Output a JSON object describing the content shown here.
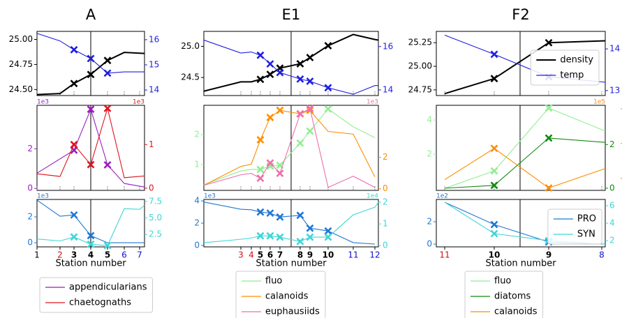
{
  "chart_data": [
    {
      "type": "line",
      "title": "A",
      "xlabel": "Station number",
      "xlim": [
        0,
        154
      ],
      "vline": 77,
      "xticks": [
        {
          "value": 0,
          "label": "1"
        },
        {
          "value": 33,
          "label": "2"
        },
        {
          "value": 53,
          "label": "3"
        },
        {
          "value": 77,
          "label": "4"
        },
        {
          "value": 101,
          "label": "5"
        },
        {
          "value": 125,
          "label": "6"
        },
        {
          "value": 147,
          "label": "7"
        }
      ],
      "xtick_styles": [
        "normal",
        "red",
        "bold",
        "bold",
        "bold",
        "blue",
        "blue"
      ],
      "panels": [
        {
          "ylim": [
            24.44,
            25.08
          ],
          "yticks": [
            {
              "value": 24.5,
              "label": "24.50"
            },
            24.75,
            {
              "value": 25,
              "label": "25.00"
            }
          ],
          "y2lim": [
            13.78,
            16.33
          ],
          "y2ticks": [
            14,
            15,
            16
          ],
          "series": [
            {
              "color": "#000000",
              "width": 2,
              "x": [
                0,
                33,
                53,
                77,
                101,
                125,
                154
              ],
              "values": [
                24.45,
                24.46,
                24.56,
                24.65,
                24.79,
                24.87,
                24.86
              ],
              "marker_x": [
                53,
                77,
                101
              ]
            },
            {
              "color": "#1f1fe0",
              "axis": "y2",
              "x": [
                0,
                33,
                53,
                77,
                101,
                125,
                154
              ],
              "values": [
                16.25,
                15.95,
                15.6,
                15.25,
                14.67,
                14.72,
                14.72
              ],
              "marker_x": [
                53,
                77,
                101
              ]
            }
          ]
        },
        {
          "ylim": [
            -0.1,
            4.2
          ],
          "yticks": [
            0,
            2
          ],
          "y2lim": [
            -0.05,
            1.9
          ],
          "y2ticks": [
            0,
            1
          ],
          "scale_left": "1e3",
          "scale_right": "1e3",
          "legend": "below",
          "series": [
            {
              "name": "appendicularians",
              "color": "#9b1fc0",
              "x": [
                0,
                53,
                77,
                101,
                125,
                154
              ],
              "values": [
                0.77,
                1.93,
                4.0,
                1.19,
                0.25,
                0.07
              ],
              "marker_x": [
                53,
                77,
                101
              ]
            },
            {
              "name": "chaetognaths",
              "color": "#e0141e",
              "axis": "y2",
              "x": [
                0,
                33,
                53,
                77,
                101,
                125,
                154
              ],
              "values": [
                0.33,
                0.27,
                1.0,
                0.54,
                1.83,
                0.24,
                0.28
              ],
              "marker_x": [
                53,
                77,
                101
              ]
            }
          ]
        },
        {
          "ylim": [
            -0.32,
            3.35
          ],
          "yticks": [
            0,
            2
          ],
          "y2lim": [
            0.6,
            7.8
          ],
          "y2ticks": [
            2.5,
            {
              "value": 5,
              "label": "5.0"
            },
            7.5
          ],
          "scale_left": "1e3",
          "series": [
            {
              "color": "#1f77d4",
              "x": [
                0,
                33,
                53,
                77,
                101,
                125,
                154
              ],
              "values": [
                3.3,
                2.05,
                2.15,
                0.55,
                0.0,
                0.0,
                0.0
              ],
              "marker_x": [
                53,
                77
              ]
            },
            {
              "color": "#3fd6d6",
              "axis": "y2",
              "x": [
                0,
                33,
                53,
                77,
                101,
                125,
                147,
                154
              ],
              "values": [
                1.8,
                1.5,
                2.1,
                1.0,
                0.8,
                6.4,
                6.3,
                6.9
              ],
              "marker_x": [
                53,
                77,
                101
              ]
            }
          ]
        }
      ]
    },
    {
      "type": "line",
      "title": "E1",
      "xlabel": "Station number",
      "xlim": [
        0,
        250
      ],
      "vline": 125,
      "xticks": [
        {
          "value": 53,
          "label": "3"
        },
        {
          "value": 68,
          "label": "4"
        },
        {
          "value": 81,
          "label": "5"
        },
        {
          "value": 95,
          "label": "6"
        },
        {
          "value": 109,
          "label": "7"
        },
        {
          "value": 138,
          "label": "8"
        },
        {
          "value": 152,
          "label": "9"
        },
        {
          "value": 178,
          "label": "10"
        },
        {
          "value": 214,
          "label": "11"
        },
        {
          "value": 245,
          "label": "12"
        }
      ],
      "xtick_styles": [
        "red",
        "red",
        "bold",
        "bold",
        "bold",
        "bold",
        "bold",
        "bold",
        "blue",
        "blue"
      ],
      "panels": [
        {
          "ylim": [
            24.21,
            25.24
          ],
          "yticks": [
            24.5,
            {
              "value": 25,
              "label": "25.0"
            }
          ],
          "y2lim": [
            13.74,
            16.7
          ],
          "y2ticks": [
            14,
            16
          ],
          "series": [
            {
              "color": "#000000",
              "width": 2,
              "x": [
                0,
                53,
                68,
                81,
                95,
                109,
                138,
                152,
                178,
                214,
                245,
                250
              ],
              "values": [
                24.28,
                24.43,
                24.43,
                24.47,
                24.55,
                24.65,
                24.72,
                24.82,
                25.01,
                25.19,
                25.11,
                25.1
              ],
              "marker_x": [
                81,
                95,
                109,
                138,
                152,
                178
              ]
            },
            {
              "color": "#1f1fe0",
              "axis": "y2",
              "x": [
                0,
                53,
                68,
                81,
                95,
                109,
                138,
                152,
                178,
                214,
                245,
                250
              ],
              "values": [
                16.3,
                15.7,
                15.75,
                15.6,
                15.2,
                14.8,
                14.5,
                14.4,
                14.1,
                13.8,
                14.2,
                14.2
              ],
              "marker_x": [
                81,
                95,
                109,
                138,
                152,
                178
              ]
            }
          ]
        },
        {
          "ylim": [
            0.14,
            2.98
          ],
          "yticks": [
            1,
            2
          ],
          "y2lim": [
            -0.1,
            5.3
          ],
          "y2ticks": [
            0,
            2
          ],
          "scale_right": "1e3",
          "legend": "below",
          "series": [
            {
              "name": "fluo",
              "color": "#90ee90",
              "x": [
                0,
                53,
                68,
                81,
                95,
                109,
                138,
                152,
                178,
                214,
                245
              ],
              "values": [
                0.33,
                0.79,
                0.84,
                0.84,
                0.95,
                0.98,
                1.72,
                2.12,
                2.86,
                2.26,
                1.9
              ],
              "marker_x": [
                81,
                95,
                109,
                138,
                152,
                178
              ]
            },
            {
              "name": "calanoids",
              "color": "#ff8c00",
              "axis": "y2",
              "x": [
                0,
                53,
                68,
                81,
                95,
                109,
                138,
                152,
                178,
                214,
                245
              ],
              "values": [
                0.22,
                1.42,
                1.56,
                3.11,
                4.53,
                4.98,
                4.76,
                4.98,
                3.64,
                3.47,
                0.76
              ],
              "marker_x": [
                81,
                95,
                109,
                138,
                152
              ]
            },
            {
              "name": "euphausiids",
              "color": "#f06eaa",
              "axis": "y2",
              "x": [
                0,
                53,
                68,
                81,
                95,
                109,
                138,
                152,
                178,
                214,
                245
              ],
              "values": [
                0.22,
                0.89,
                0.98,
                0.67,
                1.64,
                0.98,
                4.76,
                5.1,
                0.09,
                0.8,
                0.09
              ],
              "marker_x": [
                81,
                95,
                109,
                138,
                152
              ]
            }
          ]
        },
        {
          "ylim": [
            -0.13,
            4.13
          ],
          "yticks": [
            0,
            2,
            4
          ],
          "y2lim": [
            -0.06,
            2.13
          ],
          "y2ticks": [
            0,
            1,
            2
          ],
          "scale_left": "1e3",
          "scale_right": "1e4",
          "series": [
            {
              "color": "#1f77d4",
              "x": [
                0,
                53,
                68,
                81,
                95,
                109,
                138,
                152,
                178,
                214,
                245
              ],
              "values": [
                3.9,
                3.25,
                3.2,
                3.0,
                2.9,
                2.55,
                2.7,
                1.55,
                1.3,
                0.25,
                0.12
              ],
              "marker_x": [
                81,
                95,
                109,
                138,
                152,
                178
              ]
            },
            {
              "color": "#3fd6d6",
              "axis": "y2",
              "x": [
                0,
                53,
                68,
                81,
                95,
                109,
                138,
                152,
                178,
                214,
                245,
                250
              ],
              "values": [
                0.13,
                0.29,
                0.35,
                0.45,
                0.45,
                0.39,
                0.19,
                0.39,
                0.39,
                1.42,
                1.77,
                2.0
              ],
              "marker_x": [
                81,
                95,
                109,
                138,
                152,
                178
              ]
            }
          ]
        }
      ]
    },
    {
      "type": "line",
      "title": "F2",
      "xlabel": "Station number",
      "xlim": [
        0,
        242
      ],
      "vline": 120,
      "xticks": [
        {
          "value": 12,
          "label": "11"
        },
        {
          "value": 83,
          "label": "10"
        },
        {
          "value": 161,
          "label": "9"
        },
        {
          "value": 237,
          "label": "8"
        }
      ],
      "xtick_styles": [
        "red",
        "bold",
        "bold",
        "blue"
      ],
      "panels": [
        {
          "ylim": [
            24.69,
            25.37
          ],
          "yticks": [
            24.75,
            {
              "value": 25,
              "label": "25.00"
            },
            25.25
          ],
          "y2lim": [
            12.88,
            14.42
          ],
          "y2ticks": [
            13,
            14
          ],
          "legend": "upper right",
          "series": [
            {
              "name": "density",
              "color": "#000000",
              "width": 2,
              "x": [
                12,
                83,
                161,
                242
              ],
              "values": [
                24.71,
                24.87,
                25.25,
                25.27
              ],
              "marker_x": [
                83,
                161
              ]
            },
            {
              "name": "temp",
              "color": "#1f1fe0",
              "axis": "y2",
              "x": [
                12,
                83,
                161,
                242
              ],
              "values": [
                14.33,
                13.87,
                13.33,
                13.2
              ],
              "marker_x": [
                83,
                161
              ]
            }
          ]
        },
        {
          "ylim": [
            -0.12,
            4.86
          ],
          "yticks": [
            2,
            4
          ],
          "y2lim": [
            -0.1,
            3.8
          ],
          "y2ticks": [
            0,
            2
          ],
          "y3lim": [
            3.3,
            8.2
          ],
          "y3ticks": [
            4,
            6,
            8
          ],
          "scale_right": "1e5",
          "legend": "below",
          "series": [
            {
              "name": "fluo",
              "color": "#90ee90",
              "x": [
                12,
                83,
                161,
                242
              ],
              "values": [
                0,
                1.02,
                4.7,
                3.35
              ],
              "marker_x": [
                83,
                161
              ]
            },
            {
              "name": "diatoms",
              "color": "#138a13",
              "axis": "y2",
              "x": [
                12,
                83,
                161,
                242
              ],
              "values": [
                0,
                0.13,
                2.3,
                2.1
              ],
              "marker_x": [
                83,
                161
              ]
            },
            {
              "name": "calanoids",
              "color": "#ff8c00",
              "axis": "y3",
              "x": [
                12,
                83,
                161,
                242
              ],
              "values": [
                3.92,
                5.72,
                3.44,
                4.56
              ],
              "marker_x": [
                83,
                161
              ]
            }
          ]
        },
        {
          "ylim": [
            -0.25,
            4.0
          ],
          "yticks": [
            0,
            2
          ],
          "y2lim": [
            1.28,
            6.72
          ],
          "y2ticks": [
            2,
            4,
            6
          ],
          "scale_left": "1e2",
          "legend": "lower right",
          "series": [
            {
              "name": "PRO",
              "color": "#1f77d4",
              "x": [
                12,
                83,
                161,
                242
              ],
              "values": [
                3.75,
                1.75,
                0.19,
                0.0
              ],
              "marker_x": [
                83,
                161
              ]
            },
            {
              "name": "SYN",
              "color": "#3fd6d6",
              "axis": "y2",
              "x": [
                12,
                83,
                161,
                242
              ],
              "values": [
                6.4,
                2.8,
                2.0,
                1.6
              ],
              "marker_x": [
                83,
                161
              ]
            }
          ]
        }
      ]
    }
  ]
}
